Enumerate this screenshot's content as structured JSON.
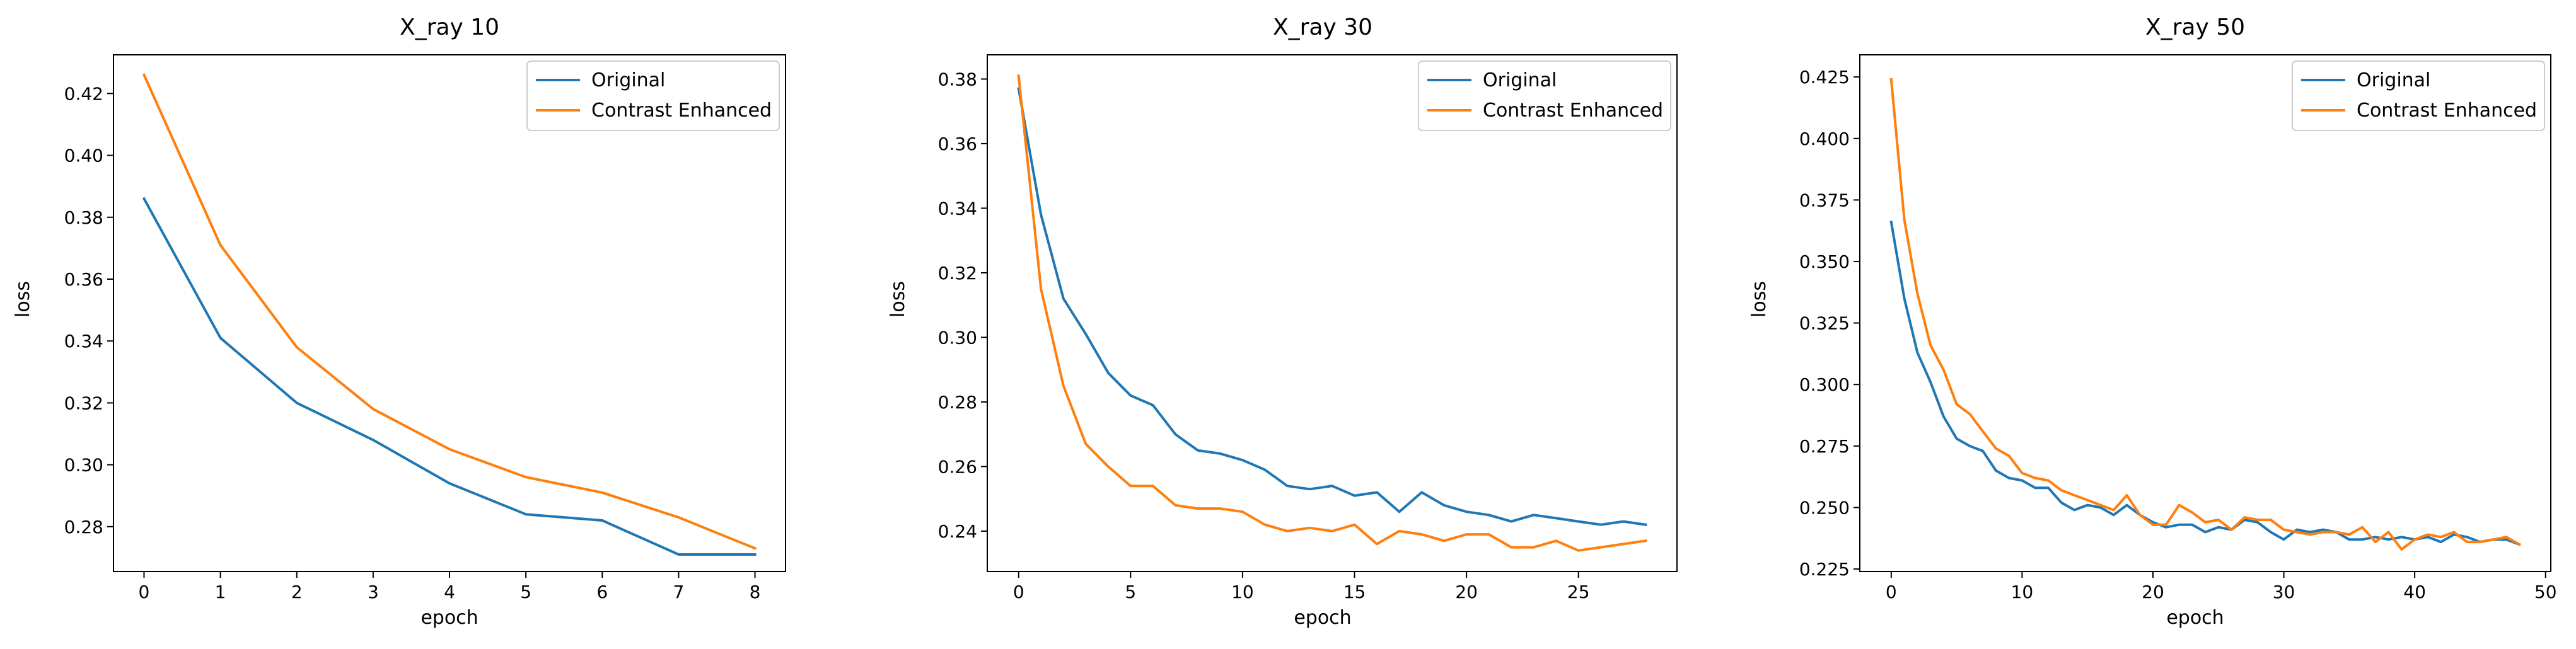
{
  "colors": {
    "original": "#1f77b4",
    "enhanced": "#ff7f0e"
  },
  "legend_position": "upper-right",
  "chart_data": [
    {
      "type": "line",
      "title": "X_ray 10",
      "xlabel": "epoch",
      "ylabel": "loss",
      "xlim": [
        -0.4,
        8.4
      ],
      "ylim": [
        0.2655,
        0.4325
      ],
      "xticks": [
        0,
        1,
        2,
        3,
        4,
        5,
        6,
        7,
        8
      ],
      "yticks": [
        0.28,
        0.3,
        0.32,
        0.34,
        0.36,
        0.38,
        0.4,
        0.42
      ],
      "yticklabels": [
        "0.28",
        "0.30",
        "0.32",
        "0.34",
        "0.36",
        "0.38",
        "0.40",
        "0.42"
      ],
      "x": [
        0,
        1,
        2,
        3,
        4,
        5,
        6,
        7,
        8
      ],
      "series": [
        {
          "name": "Original",
          "values": [
            0.386,
            0.341,
            0.32,
            0.308,
            0.294,
            0.284,
            0.282,
            0.271,
            0.271
          ]
        },
        {
          "name": "Contrast Enhanced",
          "values": [
            0.426,
            0.371,
            0.338,
            0.318,
            0.305,
            0.296,
            0.291,
            0.283,
            0.273
          ]
        }
      ]
    },
    {
      "type": "line",
      "title": "X_ray 30",
      "xlabel": "epoch",
      "ylabel": "loss",
      "xlim": [
        -1.4,
        29.4
      ],
      "ylim": [
        0.2275,
        0.3875
      ],
      "xticks": [
        0,
        5,
        10,
        15,
        20,
        25
      ],
      "yticks": [
        0.24,
        0.26,
        0.28,
        0.3,
        0.32,
        0.34,
        0.36,
        0.38
      ],
      "yticklabels": [
        "0.24",
        "0.26",
        "0.28",
        "0.30",
        "0.32",
        "0.34",
        "0.36",
        "0.38"
      ],
      "x": [
        0,
        1,
        2,
        3,
        4,
        5,
        6,
        7,
        8,
        9,
        10,
        11,
        12,
        13,
        14,
        15,
        16,
        17,
        18,
        19,
        20,
        21,
        22,
        23,
        24,
        25,
        26,
        27,
        28
      ],
      "series": [
        {
          "name": "Original",
          "values": [
            0.377,
            0.338,
            0.312,
            0.301,
            0.289,
            0.282,
            0.279,
            0.27,
            0.265,
            0.264,
            0.262,
            0.259,
            0.254,
            0.253,
            0.254,
            0.251,
            0.252,
            0.246,
            0.252,
            0.248,
            0.246,
            0.245,
            0.243,
            0.245,
            0.244,
            0.243,
            0.242,
            0.243,
            0.242
          ]
        },
        {
          "name": "Contrast Enhanced",
          "values": [
            0.381,
            0.315,
            0.285,
            0.267,
            0.26,
            0.254,
            0.254,
            0.248,
            0.247,
            0.247,
            0.246,
            0.242,
            0.24,
            0.241,
            0.24,
            0.242,
            0.236,
            0.24,
            0.239,
            0.237,
            0.239,
            0.239,
            0.235,
            0.235,
            0.237,
            0.234,
            0.235,
            0.236,
            0.237
          ]
        }
      ]
    },
    {
      "type": "line",
      "title": "X_ray 50",
      "xlabel": "epoch",
      "ylabel": "loss",
      "xlim": [
        -2.4,
        50.4
      ],
      "ylim": [
        0.224,
        0.434
      ],
      "xticks": [
        0,
        10,
        20,
        30,
        40,
        50
      ],
      "yticks": [
        0.225,
        0.25,
        0.275,
        0.3,
        0.325,
        0.35,
        0.375,
        0.4,
        0.425
      ],
      "yticklabels": [
        "0.225",
        "0.250",
        "0.275",
        "0.300",
        "0.325",
        "0.350",
        "0.375",
        "0.400",
        "0.425"
      ],
      "x": [
        0,
        1,
        2,
        3,
        4,
        5,
        6,
        7,
        8,
        9,
        10,
        11,
        12,
        13,
        14,
        15,
        16,
        17,
        18,
        19,
        20,
        21,
        22,
        23,
        24,
        25,
        26,
        27,
        28,
        29,
        30,
        31,
        32,
        33,
        34,
        35,
        36,
        37,
        38,
        39,
        40,
        41,
        42,
        43,
        44,
        45,
        46,
        47,
        48
      ],
      "series": [
        {
          "name": "Original",
          "values": [
            0.366,
            0.335,
            0.313,
            0.301,
            0.287,
            0.278,
            0.275,
            0.273,
            0.265,
            0.262,
            0.261,
            0.258,
            0.258,
            0.252,
            0.249,
            0.251,
            0.25,
            0.247,
            0.251,
            0.247,
            0.244,
            0.242,
            0.243,
            0.243,
            0.24,
            0.242,
            0.241,
            0.245,
            0.244,
            0.24,
            0.237,
            0.241,
            0.24,
            0.241,
            0.24,
            0.237,
            0.237,
            0.238,
            0.237,
            0.238,
            0.237,
            0.238,
            0.236,
            0.239,
            0.238,
            0.236,
            0.237,
            0.237,
            0.235
          ]
        },
        {
          "name": "Contrast Enhanced",
          "values": [
            0.424,
            0.367,
            0.337,
            0.316,
            0.306,
            0.292,
            0.288,
            0.281,
            0.274,
            0.271,
            0.264,
            0.262,
            0.261,
            0.257,
            0.255,
            0.253,
            0.251,
            0.249,
            0.255,
            0.247,
            0.243,
            0.243,
            0.251,
            0.248,
            0.244,
            0.245,
            0.241,
            0.246,
            0.245,
            0.245,
            0.241,
            0.24,
            0.239,
            0.24,
            0.24,
            0.239,
            0.242,
            0.236,
            0.24,
            0.233,
            0.237,
            0.239,
            0.238,
            0.24,
            0.236,
            0.236,
            0.237,
            0.238,
            0.235
          ]
        }
      ]
    }
  ]
}
